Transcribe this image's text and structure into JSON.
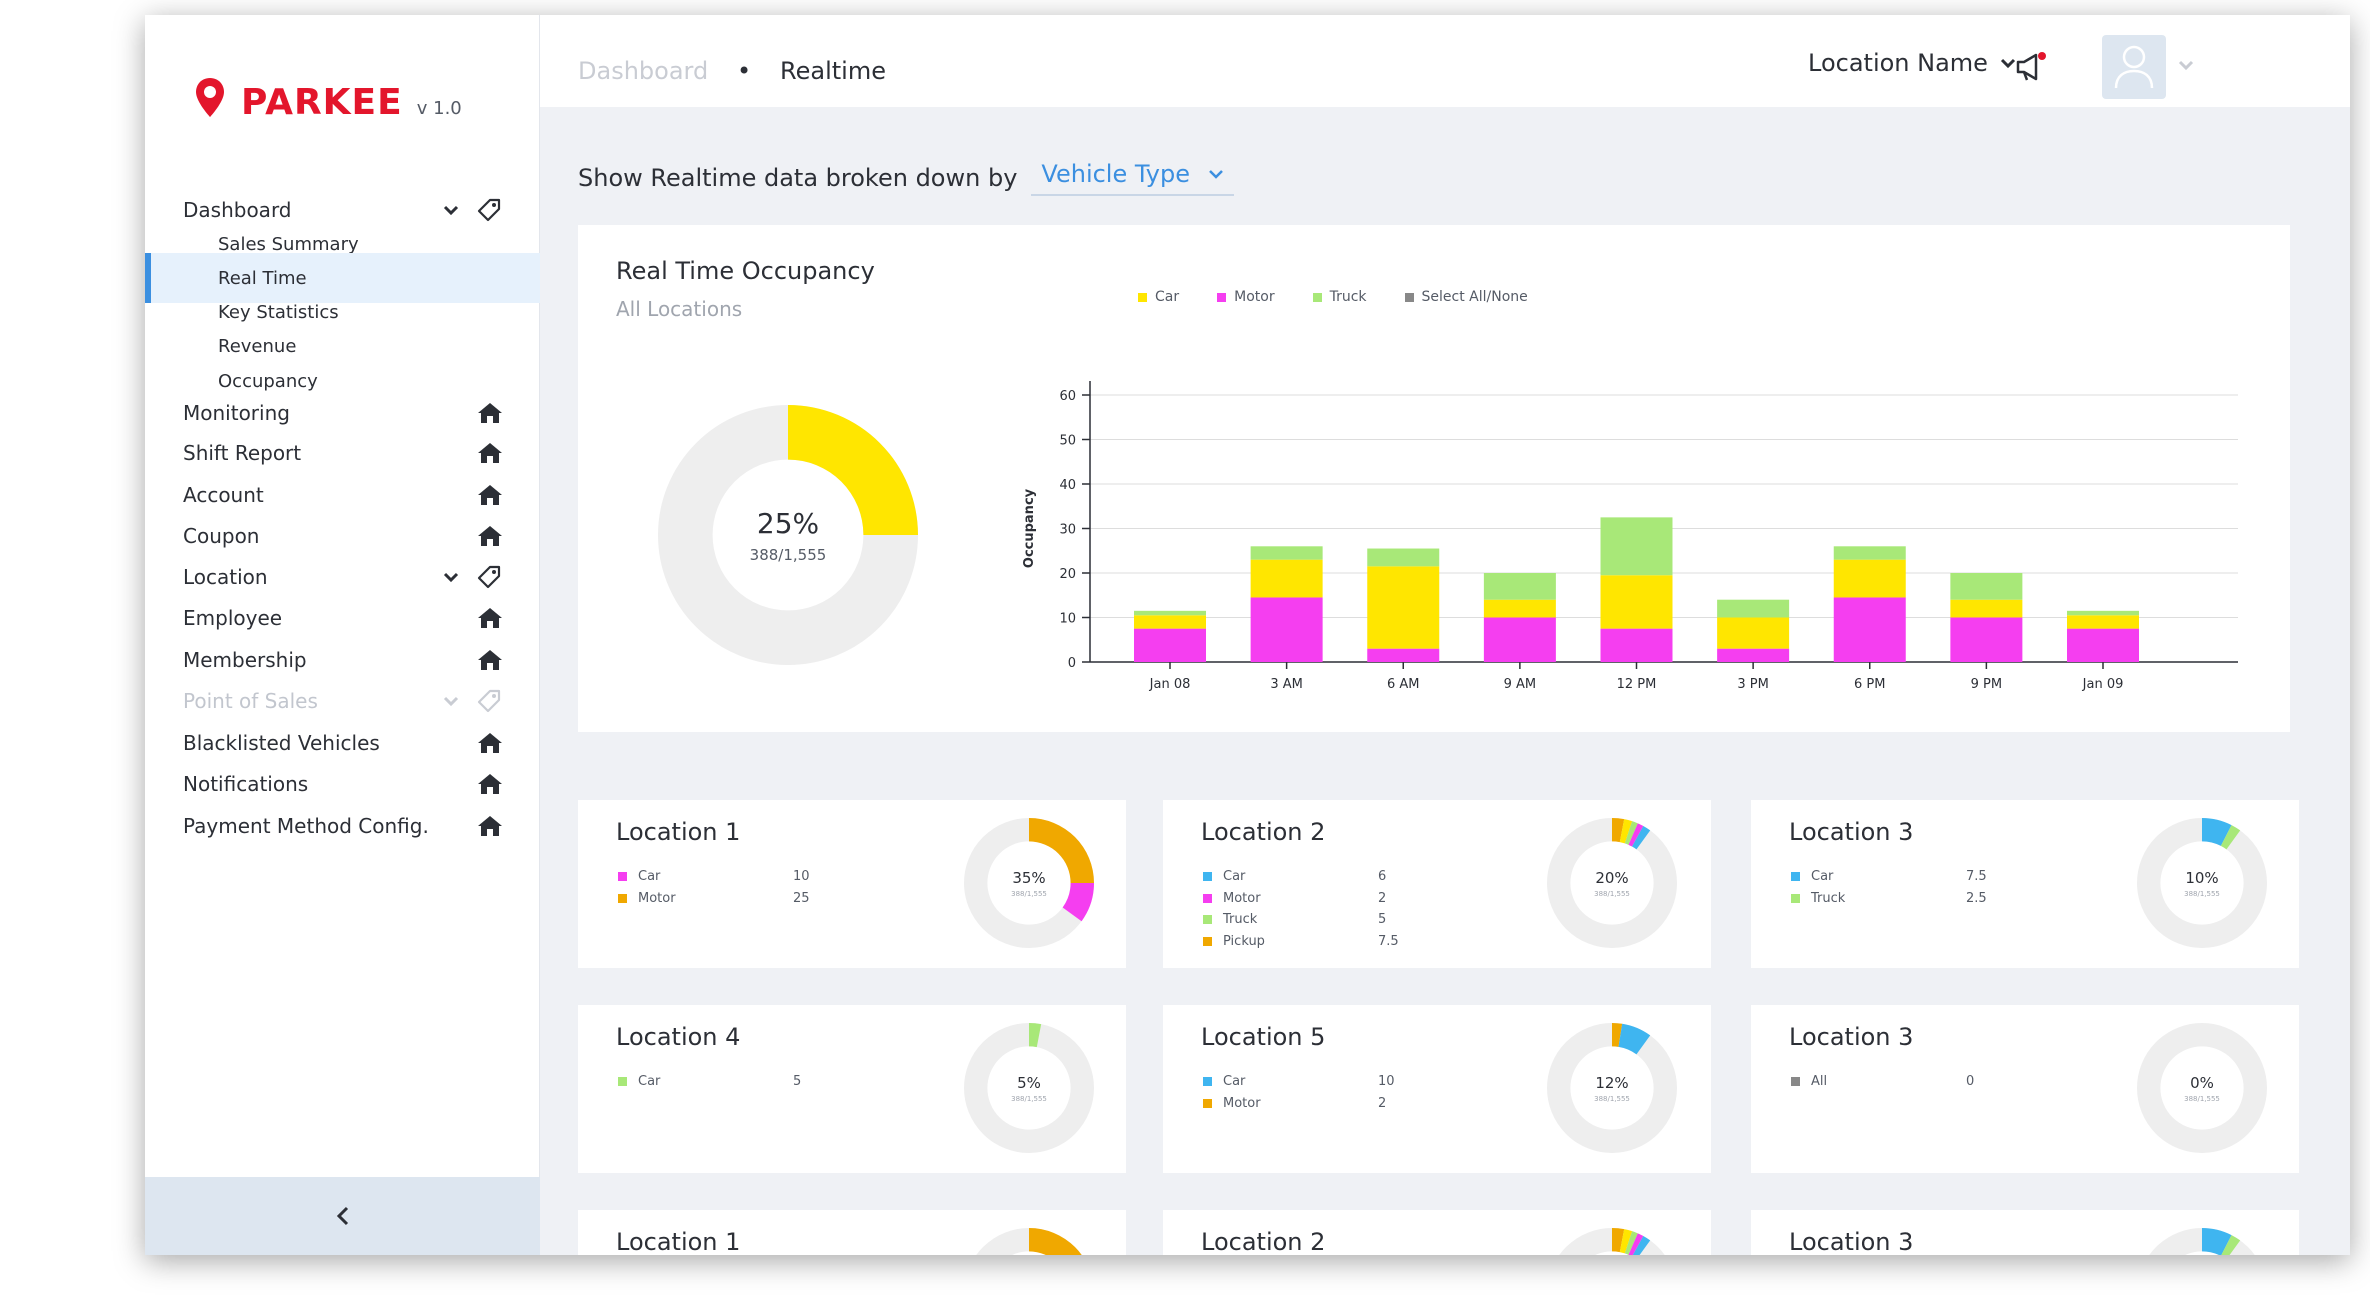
{
  "brand": {
    "name": "PARKEE",
    "version": "v 1.0",
    "color": "#e3162c"
  },
  "sidebar": {
    "dashboard": {
      "label": "Dashboard",
      "children": [
        "Sales Summary",
        "Real Time",
        "Key Statistics",
        "Revenue",
        "Occupancy"
      ],
      "active_child": "Real Time"
    },
    "items": [
      {
        "label": "Monitoring",
        "icon": "home-icon"
      },
      {
        "label": "Shift Report",
        "icon": "home-icon"
      },
      {
        "label": "Account",
        "icon": "home-icon"
      },
      {
        "label": "Coupon",
        "icon": "home-icon"
      },
      {
        "label": "Location",
        "icon": "tag-icon",
        "expandable": true
      },
      {
        "label": "Employee",
        "icon": "home-icon"
      },
      {
        "label": "Membership",
        "icon": "home-icon"
      },
      {
        "label": "Point of Sales",
        "icon": "tag-icon",
        "expandable": true,
        "disabled": true
      },
      {
        "label": "Blacklisted Vehicles",
        "icon": "home-icon"
      },
      {
        "label": "Notifications",
        "icon": "home-icon"
      },
      {
        "label": "Payment Method Config.",
        "icon": "home-icon"
      }
    ]
  },
  "topbar": {
    "breadcrumb": [
      "Dashboard",
      "Realtime"
    ],
    "breadcrumb_sep": "•",
    "location_select": "Location Name"
  },
  "filter": {
    "label": "Show Realtime data broken down by",
    "value": "Vehicle Type"
  },
  "occupancy_card": {
    "title": "Real Time Occupancy",
    "subtitle": "All Locations",
    "donut": {
      "percent_label": "25%",
      "count_label": "388/1,555",
      "fraction": 0.25
    },
    "legend": [
      {
        "name": "Car",
        "color": "#ffe600"
      },
      {
        "name": "Motor",
        "color": "#f53ef0"
      },
      {
        "name": "Truck",
        "color": "#a8e878"
      },
      {
        "name": "Select All/None",
        "color": "#888888"
      }
    ]
  },
  "chart_data": {
    "type": "bar",
    "stacked": true,
    "ylabel": "Occupancy",
    "ylim": [
      0,
      60
    ],
    "yticks": [
      0,
      10,
      20,
      30,
      40,
      50,
      60
    ],
    "categories": [
      "Jan 08",
      "3 AM",
      "6 AM",
      "9 AM",
      "12 PM",
      "3 PM",
      "6 PM",
      "9 PM",
      "Jan 09"
    ],
    "series": [
      {
        "name": "Motor",
        "color": "#f53ef0",
        "values": [
          7.5,
          14.5,
          3,
          10,
          7.5,
          3,
          14.5,
          10,
          7.5
        ]
      },
      {
        "name": "Car",
        "color": "#ffe600",
        "values": [
          3,
          8.5,
          18.5,
          4,
          12,
          7,
          8.5,
          4,
          3
        ]
      },
      {
        "name": "Truck",
        "color": "#a8e878",
        "values": [
          1,
          3,
          4,
          6,
          13,
          4,
          3,
          6,
          1
        ]
      }
    ],
    "grid": true,
    "legend_position": "top"
  },
  "location_cards": [
    {
      "title": "Location 1",
      "pct": "35%",
      "sub": "388/1,555",
      "rows": [
        {
          "name": "Car",
          "value": "10",
          "color": "#f53ef0"
        },
        {
          "name": "Motor",
          "value": "25",
          "color": "#f0a800"
        }
      ],
      "segments": [
        {
          "value": 0.25,
          "color": "#f0a800"
        },
        {
          "value": 0.1,
          "color": "#f53ef0"
        }
      ]
    },
    {
      "title": "Location 2",
      "pct": "20%",
      "sub": "388/1,555",
      "rows": [
        {
          "name": "Car",
          "value": "6",
          "color": "#3fb5f0"
        },
        {
          "name": "Motor",
          "value": "2",
          "color": "#f53ef0"
        },
        {
          "name": "Truck",
          "value": "5",
          "color": "#a8e878"
        },
        {
          "name": "Pickup",
          "value": "7.5",
          "color": "#f0a800"
        }
      ],
      "segments": [
        {
          "value": 0.03,
          "color": "#f0a800"
        },
        {
          "value": 0.02,
          "color": "#ffe600"
        },
        {
          "value": 0.015,
          "color": "#a8e878"
        },
        {
          "value": 0.015,
          "color": "#f53ef0"
        },
        {
          "value": 0.02,
          "color": "#3fb5f0"
        }
      ]
    },
    {
      "title": "Location 3",
      "pct": "10%",
      "sub": "388/1,555",
      "rows": [
        {
          "name": "Car",
          "value": "7.5",
          "color": "#3fb5f0"
        },
        {
          "name": "Truck",
          "value": "2.5",
          "color": "#a8e878"
        }
      ],
      "segments": [
        {
          "value": 0.075,
          "color": "#3fb5f0"
        },
        {
          "value": 0.025,
          "color": "#a8e878"
        }
      ]
    },
    {
      "title": "Location 4",
      "pct": "5%",
      "sub": "388/1,555",
      "rows": [
        {
          "name": "Car",
          "value": "5",
          "color": "#a8e878"
        }
      ],
      "segments": [
        {
          "value": 0.03,
          "color": "#a8e878"
        }
      ]
    },
    {
      "title": "Location 5",
      "pct": "12%",
      "sub": "388/1,555",
      "rows": [
        {
          "name": "Car",
          "value": "10",
          "color": "#3fb5f0"
        },
        {
          "name": "Motor",
          "value": "2",
          "color": "#f0a800"
        }
      ],
      "segments": [
        {
          "value": 0.025,
          "color": "#f0a800"
        },
        {
          "value": 0.075,
          "color": "#3fb5f0"
        }
      ]
    },
    {
      "title": "Location 3",
      "pct": "0%",
      "sub": "388/1,555",
      "rows": [
        {
          "name": "All",
          "value": "0",
          "color": "#888888"
        }
      ],
      "segments": []
    },
    {
      "title": "Location 1",
      "pct": "",
      "sub": "",
      "rows": [],
      "segments": [
        {
          "value": 0.25,
          "color": "#f0a800"
        },
        {
          "value": 0.1,
          "color": "#f53ef0"
        }
      ]
    },
    {
      "title": "Location 2",
      "pct": "",
      "sub": "",
      "rows": [],
      "segments": [
        {
          "value": 0.03,
          "color": "#f0a800"
        },
        {
          "value": 0.02,
          "color": "#ffe600"
        },
        {
          "value": 0.015,
          "color": "#a8e878"
        },
        {
          "value": 0.015,
          "color": "#f53ef0"
        },
        {
          "value": 0.02,
          "color": "#3fb5f0"
        }
      ]
    },
    {
      "title": "Location 3",
      "pct": "",
      "sub": "",
      "rows": [],
      "segments": [
        {
          "value": 0.075,
          "color": "#3fb5f0"
        },
        {
          "value": 0.025,
          "color": "#a8e878"
        }
      ]
    }
  ]
}
